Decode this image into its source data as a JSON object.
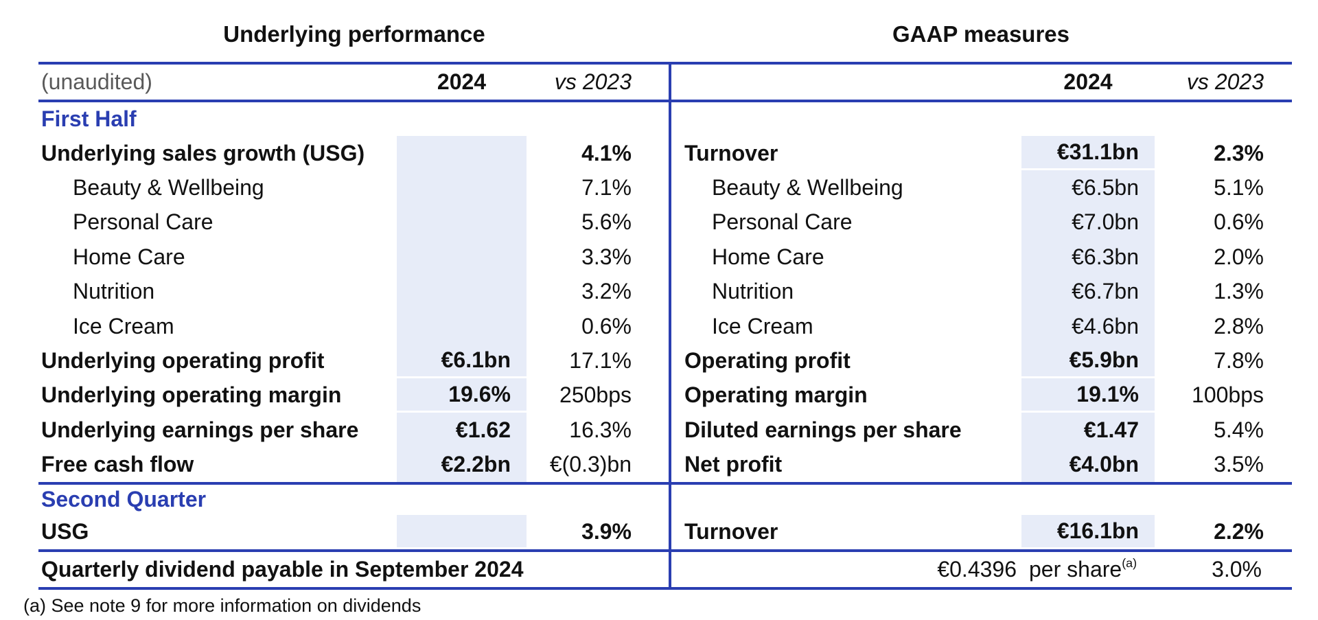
{
  "header": {
    "left_title": "Underlying performance",
    "right_title": "GAAP measures",
    "unaudited_label": "(unaudited)",
    "year_col": "2024",
    "vs_col": "vs 2023"
  },
  "first_half_label": "First Half",
  "second_quarter_label": "Second Quarter",
  "rows_first_half": [
    {
      "left": {
        "label": "Underlying sales growth (USG)",
        "bold": true,
        "value": "",
        "shaded": true,
        "vs": "4.1%",
        "vs_bold": true
      },
      "right": {
        "label": "Turnover",
        "bold": true,
        "value": "€31.1bn",
        "value_bold": true,
        "shaded": true,
        "gap_below": true,
        "vs": "2.3%",
        "vs_bold": true
      }
    },
    {
      "left": {
        "label": "Beauty & Wellbeing",
        "indent": true,
        "value": "",
        "shaded": true,
        "vs": "7.1%"
      },
      "right": {
        "label": "Beauty & Wellbeing",
        "indent": true,
        "value": "€6.5bn",
        "shaded": true,
        "vs": "5.1%"
      }
    },
    {
      "left": {
        "label": "Personal Care",
        "indent": true,
        "value": "",
        "shaded": true,
        "vs": "5.6%"
      },
      "right": {
        "label": "Personal Care",
        "indent": true,
        "value": "€7.0bn",
        "shaded": true,
        "vs": "0.6%"
      }
    },
    {
      "left": {
        "label": "Home Care",
        "indent": true,
        "value": "",
        "shaded": true,
        "vs": "3.3%"
      },
      "right": {
        "label": "Home Care",
        "indent": true,
        "value": "€6.3bn",
        "shaded": true,
        "vs": "2.0%"
      }
    },
    {
      "left": {
        "label": "Nutrition",
        "indent": true,
        "value": "",
        "shaded": true,
        "vs": "3.2%"
      },
      "right": {
        "label": "Nutrition",
        "indent": true,
        "value": "€6.7bn",
        "shaded": true,
        "vs": "1.3%"
      }
    },
    {
      "left": {
        "label": "Ice Cream",
        "indent": true,
        "value": "",
        "shaded": true,
        "vs": "0.6%"
      },
      "right": {
        "label": "Ice Cream",
        "indent": true,
        "value": "€4.6bn",
        "shaded": true,
        "vs": "2.8%"
      }
    },
    {
      "left": {
        "label": "Underlying operating profit",
        "bold": true,
        "value": "€6.1bn",
        "value_bold": true,
        "shaded": true,
        "gap_below": true,
        "vs": "17.1%"
      },
      "right": {
        "label": "Operating profit",
        "bold": true,
        "value": "€5.9bn",
        "value_bold": true,
        "shaded": true,
        "gap_below": true,
        "vs": "7.8%"
      }
    },
    {
      "left": {
        "label": "Underlying operating margin",
        "bold": true,
        "value": "19.6%",
        "value_bold": true,
        "shaded": true,
        "gap_below": true,
        "vs": "250bps"
      },
      "right": {
        "label": "Operating margin",
        "bold": true,
        "value": "19.1%",
        "value_bold": true,
        "shaded": true,
        "gap_below": true,
        "vs": "100bps"
      }
    },
    {
      "left": {
        "label": "Underlying earnings per share",
        "bold": true,
        "value": "€1.62",
        "value_bold": true,
        "shaded": true,
        "vs": "16.3%"
      },
      "right": {
        "label": "Diluted earnings per share",
        "bold": true,
        "value": "€1.47",
        "value_bold": true,
        "shaded": true,
        "vs": "5.4%"
      }
    },
    {
      "left": {
        "label": "Free cash flow",
        "bold": true,
        "value": "€2.2bn",
        "value_bold": true,
        "shaded": true,
        "vs": "€(0.3)bn"
      },
      "right": {
        "label": "Net profit",
        "bold": true,
        "value": "€4.0bn",
        "value_bold": true,
        "shaded": true,
        "vs": "3.5%"
      }
    }
  ],
  "rows_second_quarter": [
    {
      "left": {
        "label": "USG",
        "bold": true,
        "value": "",
        "shaded": true,
        "gap_below": true,
        "vs": "3.9%",
        "vs_bold": true
      },
      "right": {
        "label": "Turnover",
        "bold": true,
        "value": "€16.1bn",
        "value_bold": true,
        "shaded": true,
        "gap_below": true,
        "vs": "2.2%",
        "vs_bold": true
      }
    }
  ],
  "dividend": {
    "label": "Quarterly dividend payable in September 2024",
    "amount": "€0.4396",
    "unit": "per share",
    "footnote_ref": "(a)",
    "vs": "3.0%"
  },
  "footnote": "(a) See note 9 for more information on dividends",
  "colors": {
    "accent_blue": "#2a3eb1",
    "shade_fill": "#e7ecf8",
    "muted_gray": "#595959",
    "text": "#111111"
  }
}
